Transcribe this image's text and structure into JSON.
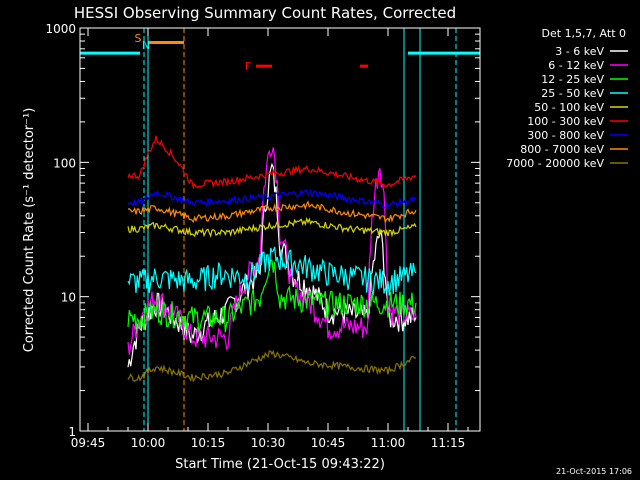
{
  "chart_data": {
    "type": "line",
    "title": "HESSI Observing Summary Count Rates, Corrected",
    "xlabel": "Start Time (21-Oct-15 09:43:22)",
    "ylabel": "Corrected Count Rate (s⁻¹ detector⁻¹)",
    "yscale": "log",
    "ylim": [
      1,
      1000
    ],
    "xlim_minutes": [
      "09:43",
      "11:23"
    ],
    "x_ticks": [
      "09:45",
      "10:00",
      "10:15",
      "10:30",
      "10:45",
      "11:00",
      "11:15"
    ],
    "y_ticks": [
      "1",
      "10",
      "100",
      "1000"
    ],
    "grid": false,
    "legend_header": "Det 1,5,7, Att 0",
    "legend_position": "right",
    "series": [
      {
        "name": "3 - 6 keV",
        "color": "#ffffff",
        "x": [
          "09:55",
          "09:58",
          "10:02",
          "10:11",
          "10:20",
          "10:28",
          "10:31",
          "10:33",
          "10:36",
          "10:45",
          "10:55",
          "10:58",
          "11:00",
          "11:07"
        ],
        "y": [
          3,
          6,
          9,
          5,
          8,
          15,
          90,
          25,
          15,
          8,
          7,
          30,
          7,
          7
        ]
      },
      {
        "name": "6 - 12 keV",
        "color": "#ff00ff",
        "x": [
          "09:55",
          "09:58",
          "10:02",
          "10:11",
          "10:20",
          "10:28",
          "10:31",
          "10:33",
          "10:36",
          "10:45",
          "10:55",
          "10:58",
          "11:00",
          "11:07"
        ],
        "y": [
          4,
          7,
          10,
          5,
          5,
          20,
          150,
          30,
          12,
          6,
          6,
          100,
          8,
          7
        ]
      },
      {
        "name": "12 - 25 keV",
        "color": "#00ff00",
        "x": [
          "09:55",
          "09:58",
          "10:02",
          "10:11",
          "10:20",
          "10:28",
          "10:31",
          "10:33",
          "10:45",
          "10:58",
          "11:07"
        ],
        "y": [
          7,
          7,
          8,
          7,
          7,
          10,
          20,
          10,
          9,
          9,
          9
        ]
      },
      {
        "name": "25 - 50 keV",
        "color": "#00ffff",
        "x": [
          "09:55",
          "09:58",
          "10:02",
          "10:11",
          "10:18",
          "10:25",
          "10:31",
          "10:45",
          "11:00",
          "11:07"
        ],
        "y": [
          13,
          13,
          14,
          13,
          15,
          14,
          20,
          15,
          13,
          15
        ]
      },
      {
        "name": "50 - 100 keV",
        "color": "#d7d700",
        "x": [
          "09:55",
          "09:58",
          "10:02",
          "10:11",
          "10:20",
          "10:31",
          "10:40",
          "10:50",
          "11:00",
          "11:07"
        ],
        "y": [
          32,
          32,
          34,
          30,
          30,
          34,
          36,
          32,
          30,
          33
        ]
      },
      {
        "name": "100 - 300 keV",
        "color": "#ff0000",
        "x": [
          "09:55",
          "09:58",
          "10:02",
          "10:11",
          "10:20",
          "10:31",
          "10:40",
          "10:50",
          "11:00",
          "11:07"
        ],
        "y": [
          80,
          80,
          150,
          68,
          72,
          82,
          90,
          78,
          68,
          80
        ]
      },
      {
        "name": "300 - 800 keV",
        "color": "#0000ff",
        "x": [
          "09:55",
          "09:58",
          "10:02",
          "10:11",
          "10:20",
          "10:31",
          "10:40",
          "10:50",
          "11:00",
          "11:07"
        ],
        "y": [
          50,
          50,
          60,
          50,
          52,
          56,
          60,
          54,
          48,
          53
        ]
      },
      {
        "name": "800 - 7000 keV",
        "color": "#ff8c00",
        "x": [
          "09:55",
          "09:58",
          "10:02",
          "10:11",
          "10:20",
          "10:31",
          "10:40",
          "10:50",
          "11:00",
          "11:07"
        ],
        "y": [
          43,
          43,
          46,
          38,
          40,
          46,
          48,
          42,
          38,
          44
        ]
      },
      {
        "name": "7000 - 20000 keV",
        "color": "#8b7500",
        "x": [
          "09:55",
          "09:58",
          "10:02",
          "10:11",
          "10:20",
          "10:31",
          "10:40",
          "10:50",
          "11:00",
          "11:07"
        ],
        "y": [
          2.5,
          2.5,
          3,
          2.5,
          2.7,
          3.8,
          3.2,
          3,
          2.8,
          3.5
        ]
      }
    ],
    "annotations": [
      {
        "label": "S",
        "color": "#ff8c00",
        "x": "09:59"
      },
      {
        "label": "N",
        "color": "#00ffff",
        "x": "10:00"
      },
      {
        "label": "F",
        "color": "#ff0000",
        "x": "10:25"
      }
    ],
    "flag_bars": [
      {
        "type": "saa",
        "color": "#ff8c00",
        "x_start": "10:00",
        "x_end": "10:09",
        "level": 780
      },
      {
        "type": "night",
        "color": "#00ffff",
        "x_start": "09:43",
        "x_end": "09:58",
        "level": 650
      },
      {
        "type": "night",
        "color": "#00ffff",
        "x_start": "11:05",
        "x_end": "11:23",
        "level": 650
      },
      {
        "type": "flare",
        "color": "#ff0000",
        "x_start": "10:27",
        "x_end": "10:31",
        "level": 520
      },
      {
        "type": "flare",
        "color": "#ff0000",
        "x_start": "10:53",
        "x_end": "10:55",
        "level": 520
      }
    ],
    "vlines": [
      {
        "x": "09:59",
        "color": "#00ffff",
        "style": "dashed"
      },
      {
        "x": "10:00",
        "color": "#00ffff",
        "style": "solid"
      },
      {
        "x": "10:09",
        "color": "#ff8c00",
        "style": "dashed"
      },
      {
        "x": "11:04",
        "color": "#00ffff",
        "style": "solid"
      },
      {
        "x": "11:08",
        "color": "#00ffff",
        "style": "solid"
      },
      {
        "x": "11:17",
        "color": "#00ffff",
        "style": "dashed"
      }
    ],
    "timestamp": "21-Oct-2015 17:06"
  }
}
